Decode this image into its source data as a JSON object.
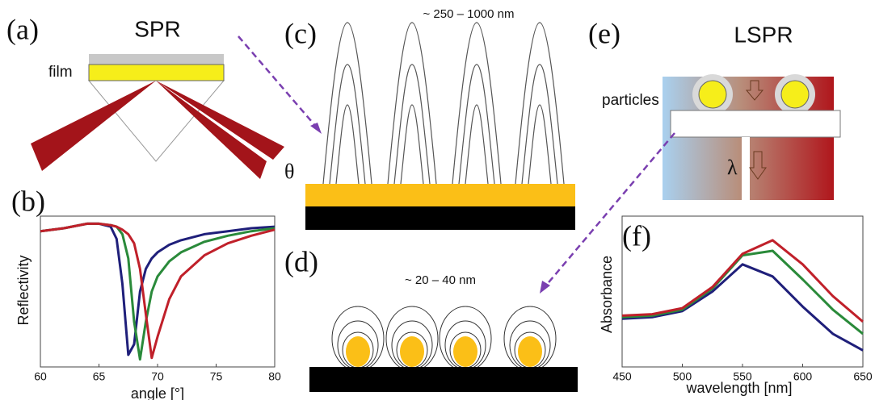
{
  "panels": {
    "a_label": "(a)",
    "a_title": "SPR",
    "film": "film",
    "c_label": "(c)",
    "c_size": "~ 250 – 1000 nm",
    "theta": "θ",
    "e_label": "(e)",
    "e_title": "LSPR",
    "particles": "particles",
    "lambda": "λ",
    "d_label": "(d)",
    "d_size": "~ 20 – 40 nm"
  },
  "chart_data": [
    {
      "type": "line",
      "title": "(b)",
      "x_label": "angle [°]",
      "y_label": "Reflectivity",
      "x": [
        60,
        62,
        64,
        65,
        66,
        66.5,
        67,
        67.5,
        68,
        68.5,
        69,
        69.5,
        70,
        71,
        72,
        74,
        76,
        78,
        80
      ],
      "xlim": [
        60,
        80
      ],
      "xticks": [
        60,
        65,
        70,
        75,
        80
      ],
      "ylim": [
        0,
        1
      ],
      "series": [
        {
          "color": "#1f1f7a",
          "values": [
            0.9,
            0.92,
            0.95,
            0.95,
            0.93,
            0.85,
            0.55,
            0.08,
            0.15,
            0.5,
            0.65,
            0.72,
            0.76,
            0.81,
            0.84,
            0.88,
            0.9,
            0.92,
            0.93
          ]
        },
        {
          "color": "#2a8a3a",
          "values": [
            0.9,
            0.92,
            0.95,
            0.95,
            0.94,
            0.93,
            0.88,
            0.72,
            0.3,
            0.05,
            0.3,
            0.5,
            0.6,
            0.7,
            0.76,
            0.83,
            0.87,
            0.9,
            0.92
          ]
        },
        {
          "color": "#c0202a",
          "values": [
            0.9,
            0.92,
            0.95,
            0.95,
            0.94,
            0.93,
            0.91,
            0.88,
            0.82,
            0.65,
            0.35,
            0.06,
            0.2,
            0.45,
            0.6,
            0.74,
            0.82,
            0.87,
            0.91
          ]
        }
      ]
    },
    {
      "type": "line",
      "title": "(f)",
      "x_label": "wavelength [nm]",
      "y_label": "Absorbance",
      "x": [
        450,
        475,
        500,
        525,
        550,
        575,
        600,
        625,
        650
      ],
      "xlim": [
        450,
        650
      ],
      "xticks": [
        450,
        500,
        550,
        600,
        650
      ],
      "ylim": [
        0,
        1
      ],
      "series": [
        {
          "color": "#1f1f7a",
          "values": [
            0.32,
            0.33,
            0.37,
            0.5,
            0.68,
            0.6,
            0.4,
            0.22,
            0.11
          ]
        },
        {
          "color": "#2a8a3a",
          "values": [
            0.33,
            0.34,
            0.38,
            0.52,
            0.74,
            0.77,
            0.58,
            0.38,
            0.22
          ]
        },
        {
          "color": "#c0202a",
          "values": [
            0.34,
            0.35,
            0.39,
            0.53,
            0.75,
            0.84,
            0.68,
            0.47,
            0.3
          ]
        }
      ]
    }
  ]
}
